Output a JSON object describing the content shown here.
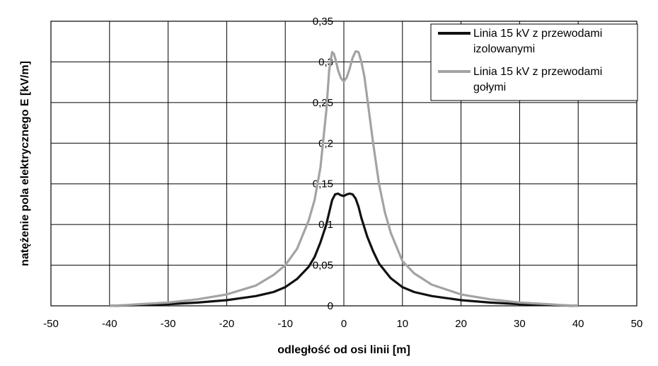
{
  "chart_data": {
    "type": "line",
    "xlabel": "odległość od osi linii [m]",
    "ylabel": "natężenie pola elektrycznego E [kV/m]",
    "xlim": [
      -50,
      50
    ],
    "ylim": [
      0,
      0.35
    ],
    "x_ticks": [
      "-50",
      "-40",
      "-30",
      "-20",
      "-10",
      "0",
      "10",
      "20",
      "30",
      "40",
      "50"
    ],
    "y_ticks": [
      "0",
      "0,05",
      "0,1",
      "0,15",
      "0,2",
      "0,25",
      "0,3",
      "0,35"
    ],
    "grid": true,
    "legend_position": "top-right",
    "series": [
      {
        "name": "Linia 15 kV z przewodami izolowanymi",
        "legend_lines": [
          "Linia 15 kV z przewodami",
          "izolowanymi"
        ],
        "color": "#111111",
        "points": [
          [
            -40,
            0.0
          ],
          [
            -35,
            0.001
          ],
          [
            -30,
            0.002
          ],
          [
            -25,
            0.004
          ],
          [
            -20,
            0.007
          ],
          [
            -15,
            0.012
          ],
          [
            -12,
            0.017
          ],
          [
            -10,
            0.023
          ],
          [
            -8,
            0.033
          ],
          [
            -6,
            0.048
          ],
          [
            -5,
            0.06
          ],
          [
            -4,
            0.078
          ],
          [
            -3,
            0.1
          ],
          [
            -2.5,
            0.115
          ],
          [
            -2,
            0.13
          ],
          [
            -1.5,
            0.137
          ],
          [
            -1,
            0.138
          ],
          [
            -0.5,
            0.136
          ],
          [
            0,
            0.135
          ],
          [
            0.5,
            0.137
          ],
          [
            1,
            0.138
          ],
          [
            1.5,
            0.137
          ],
          [
            2,
            0.132
          ],
          [
            2.5,
            0.122
          ],
          [
            3,
            0.108
          ],
          [
            4,
            0.085
          ],
          [
            5,
            0.067
          ],
          [
            6,
            0.052
          ],
          [
            8,
            0.034
          ],
          [
            10,
            0.023
          ],
          [
            12,
            0.017
          ],
          [
            15,
            0.012
          ],
          [
            20,
            0.007
          ],
          [
            25,
            0.004
          ],
          [
            30,
            0.002
          ],
          [
            35,
            0.001
          ],
          [
            40,
            0.0
          ]
        ]
      },
      {
        "name": "Linia 15 kV z przewodami gołymi",
        "legend_lines": [
          "Linia 15 kV z przewodami",
          "gołymi"
        ],
        "color": "#a3a3a3",
        "points": [
          [
            -40,
            0.0
          ],
          [
            -37,
            0.001
          ],
          [
            -35,
            0.002
          ],
          [
            -30,
            0.004
          ],
          [
            -25,
            0.008
          ],
          [
            -20,
            0.014
          ],
          [
            -15,
            0.025
          ],
          [
            -12,
            0.038
          ],
          [
            -10,
            0.05
          ],
          [
            -8,
            0.07
          ],
          [
            -6,
            0.105
          ],
          [
            -5,
            0.13
          ],
          [
            -4,
            0.17
          ],
          [
            -3,
            0.24
          ],
          [
            -2.5,
            0.29
          ],
          [
            -2,
            0.312
          ],
          [
            -1.7,
            0.31
          ],
          [
            -1.3,
            0.3
          ],
          [
            -1,
            0.29
          ],
          [
            -0.5,
            0.28
          ],
          [
            0,
            0.276
          ],
          [
            0.5,
            0.281
          ],
          [
            1,
            0.292
          ],
          [
            1.5,
            0.305
          ],
          [
            2,
            0.313
          ],
          [
            2.5,
            0.312
          ],
          [
            3,
            0.3
          ],
          [
            3.5,
            0.282
          ],
          [
            4,
            0.255
          ],
          [
            5,
            0.2
          ],
          [
            6,
            0.15
          ],
          [
            7,
            0.115
          ],
          [
            8,
            0.09
          ],
          [
            10,
            0.055
          ],
          [
            12,
            0.04
          ],
          [
            15,
            0.026
          ],
          [
            20,
            0.014
          ],
          [
            25,
            0.008
          ],
          [
            30,
            0.004
          ],
          [
            35,
            0.002
          ],
          [
            37,
            0.001
          ],
          [
            40,
            0.0
          ]
        ]
      }
    ]
  }
}
